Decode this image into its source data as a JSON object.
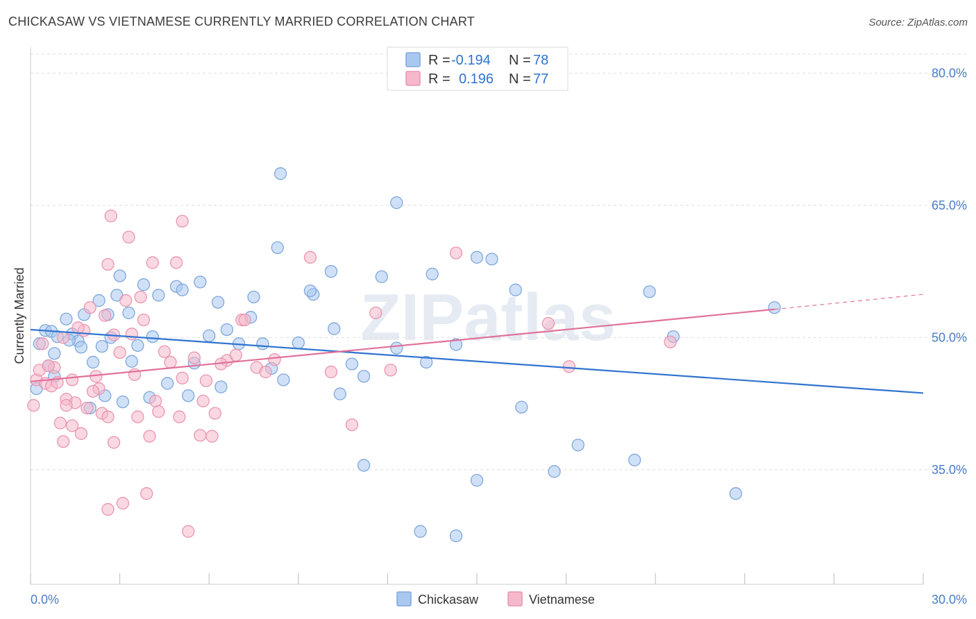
{
  "title": "CHICKASAW VS VIETNAMESE CURRENTLY MARRIED CORRELATION CHART",
  "source": "Source: ZipAtlas.com",
  "watermark": "ZIPatlas",
  "colors": {
    "blue_fill": "#a9c8f0",
    "blue_stroke": "#7ea7dc",
    "blue_line": "#2f73cf",
    "pink_fill": "#f6b8cb",
    "pink_stroke": "#e995b0",
    "pink_line": "#e0719a",
    "tick_text": "#4a7cc9",
    "grid": "#dddddd"
  },
  "legend": {
    "rows": [
      {
        "r_label": "R =",
        "r_value": "-0.194",
        "n_label": "N =",
        "n_value": "78"
      },
      {
        "r_label": "R =",
        "r_value": "0.196",
        "n_label": "N =",
        "n_value": "77"
      }
    ]
  },
  "chart_data": {
    "type": "scatter",
    "title": "CHICKASAW VS VIETNAMESE CURRENTLY MARRIED CORRELATION CHART",
    "xlabel": "",
    "ylabel": "Currently Married",
    "xlim": [
      0,
      30
    ],
    "ylim": [
      22,
      82
    ],
    "x_tick_labels": [
      "0.0%",
      "30.0%"
    ],
    "y_ticks": [
      35,
      50,
      65,
      80
    ],
    "y_tick_labels": [
      "35.0%",
      "50.0%",
      "65.0%",
      "80.0%"
    ],
    "grid": true,
    "legend_position": "top-center",
    "series": [
      {
        "name": "Chickasaw",
        "color": "#a9c8f0",
        "trend": {
          "x": [
            0,
            30
          ],
          "y": [
            50.9,
            43.7
          ]
        },
        "points": [
          [
            0.2,
            44.2
          ],
          [
            0.3,
            49.3
          ],
          [
            0.5,
            50.8
          ],
          [
            0.6,
            46.8
          ],
          [
            0.7,
            50.7
          ],
          [
            0.8,
            45.6
          ],
          [
            0.9,
            50.1
          ],
          [
            1.2,
            52.1
          ],
          [
            1.4,
            50.4
          ],
          [
            1.6,
            49.6
          ],
          [
            1.7,
            48.9
          ],
          [
            1.8,
            52.6
          ],
          [
            2.0,
            42.0
          ],
          [
            2.1,
            47.2
          ],
          [
            2.3,
            54.2
          ],
          [
            2.4,
            49.0
          ],
          [
            2.5,
            43.4
          ],
          [
            2.6,
            52.6
          ],
          [
            2.9,
            54.8
          ],
          [
            3.0,
            57.0
          ],
          [
            3.1,
            42.7
          ],
          [
            3.3,
            52.8
          ],
          [
            3.6,
            49.1
          ],
          [
            3.8,
            56.0
          ],
          [
            4.1,
            50.1
          ],
          [
            4.3,
            54.8
          ],
          [
            4.6,
            44.8
          ],
          [
            4.9,
            55.8
          ],
          [
            5.1,
            55.4
          ],
          [
            5.5,
            47.1
          ],
          [
            5.7,
            56.3
          ],
          [
            6.0,
            50.2
          ],
          [
            6.3,
            54.0
          ],
          [
            6.6,
            50.9
          ],
          [
            7.0,
            49.3
          ],
          [
            7.5,
            54.6
          ],
          [
            8.1,
            46.5
          ],
          [
            8.5,
            45.2
          ],
          [
            9.0,
            49.4
          ],
          [
            9.5,
            54.9
          ],
          [
            10.1,
            57.5
          ],
          [
            10.4,
            43.6
          ],
          [
            11.2,
            45.6
          ],
          [
            11.8,
            56.9
          ],
          [
            12.3,
            48.8
          ],
          [
            13.5,
            57.2
          ],
          [
            15.0,
            59.1
          ],
          [
            16.3,
            55.4
          ],
          [
            0.8,
            48.2
          ],
          [
            1.3,
            49.7
          ],
          [
            2.7,
            50.0
          ],
          [
            3.4,
            47.3
          ],
          [
            4.0,
            43.2
          ],
          [
            5.3,
            43.4
          ],
          [
            6.4,
            44.4
          ],
          [
            7.4,
            52.3
          ],
          [
            8.3,
            60.2
          ],
          [
            9.4,
            55.3
          ],
          [
            10.2,
            51.0
          ],
          [
            10.8,
            47.0
          ],
          [
            12.3,
            65.3
          ],
          [
            13.3,
            47.2
          ],
          [
            14.3,
            49.2
          ],
          [
            15.5,
            58.9
          ],
          [
            16.5,
            42.1
          ],
          [
            18.4,
            37.8
          ],
          [
            20.8,
            55.2
          ],
          [
            21.6,
            50.1
          ],
          [
            11.2,
            35.5
          ],
          [
            13.1,
            28.0
          ],
          [
            15.0,
            33.8
          ],
          [
            17.6,
            34.8
          ],
          [
            20.3,
            36.1
          ],
          [
            23.7,
            32.3
          ],
          [
            25.0,
            53.4
          ],
          [
            8.4,
            68.6
          ],
          [
            7.8,
            49.3
          ],
          [
            14.3,
            27.5
          ]
        ]
      },
      {
        "name": "Vietnamese",
        "color": "#f6b8cb",
        "trend": {
          "x": [
            0,
            25
          ],
          "y": [
            45.0,
            53.2
          ]
        },
        "dashed_extension": {
          "x": [
            25,
            30
          ],
          "y": [
            53.2,
            54.9
          ]
        },
        "points": [
          [
            0.1,
            42.3
          ],
          [
            0.2,
            45.2
          ],
          [
            0.3,
            46.3
          ],
          [
            0.4,
            49.3
          ],
          [
            0.5,
            44.8
          ],
          [
            0.7,
            44.5
          ],
          [
            0.8,
            46.6
          ],
          [
            1.0,
            40.3
          ],
          [
            1.1,
            38.2
          ],
          [
            1.2,
            43.0
          ],
          [
            1.4,
            40.0
          ],
          [
            1.5,
            42.6
          ],
          [
            1.7,
            39.1
          ],
          [
            1.8,
            50.8
          ],
          [
            1.9,
            42.0
          ],
          [
            2.0,
            53.4
          ],
          [
            2.2,
            45.6
          ],
          [
            2.3,
            44.2
          ],
          [
            2.4,
            41.4
          ],
          [
            2.6,
            41.0
          ],
          [
            2.8,
            50.3
          ],
          [
            3.0,
            48.3
          ],
          [
            3.2,
            54.2
          ],
          [
            3.4,
            50.4
          ],
          [
            3.5,
            45.8
          ],
          [
            3.8,
            52.0
          ],
          [
            4.0,
            38.8
          ],
          [
            4.2,
            42.8
          ],
          [
            4.5,
            48.4
          ],
          [
            4.7,
            47.2
          ],
          [
            5.1,
            45.4
          ],
          [
            5.5,
            47.7
          ],
          [
            5.9,
            45.1
          ],
          [
            6.2,
            41.4
          ],
          [
            6.6,
            47.4
          ],
          [
            7.1,
            52.0
          ],
          [
            7.6,
            46.6
          ],
          [
            8.2,
            47.5
          ],
          [
            9.4,
            59.1
          ],
          [
            10.1,
            46.1
          ],
          [
            10.8,
            40.1
          ],
          [
            11.6,
            52.8
          ],
          [
            12.1,
            46.3
          ],
          [
            14.3,
            59.6
          ],
          [
            17.4,
            51.6
          ],
          [
            18.1,
            46.7
          ],
          [
            21.5,
            49.5
          ],
          [
            0.6,
            46.8
          ],
          [
            1.1,
            50.0
          ],
          [
            1.6,
            51.1
          ],
          [
            2.5,
            52.5
          ],
          [
            2.8,
            38.1
          ],
          [
            3.1,
            31.2
          ],
          [
            3.3,
            61.4
          ],
          [
            3.7,
            54.6
          ],
          [
            4.1,
            58.5
          ],
          [
            4.9,
            58.5
          ],
          [
            5.1,
            63.2
          ],
          [
            5.7,
            38.9
          ],
          [
            6.1,
            38.8
          ],
          [
            7.2,
            52.0
          ],
          [
            3.9,
            32.3
          ],
          [
            2.6,
            30.5
          ],
          [
            5.3,
            28.0
          ],
          [
            2.6,
            58.3
          ],
          [
            2.7,
            63.8
          ],
          [
            1.4,
            45.2
          ],
          [
            2.1,
            43.9
          ],
          [
            1.2,
            42.3
          ],
          [
            3.6,
            41.0
          ],
          [
            0.9,
            44.9
          ],
          [
            5.8,
            42.8
          ],
          [
            6.4,
            47.0
          ],
          [
            6.9,
            48.0
          ],
          [
            4.3,
            41.6
          ],
          [
            7.9,
            46.1
          ],
          [
            5.0,
            41.0
          ]
        ]
      }
    ]
  },
  "bottom_legend": {
    "items": [
      {
        "label": "Chickasaw"
      },
      {
        "label": "Vietnamese"
      }
    ]
  }
}
